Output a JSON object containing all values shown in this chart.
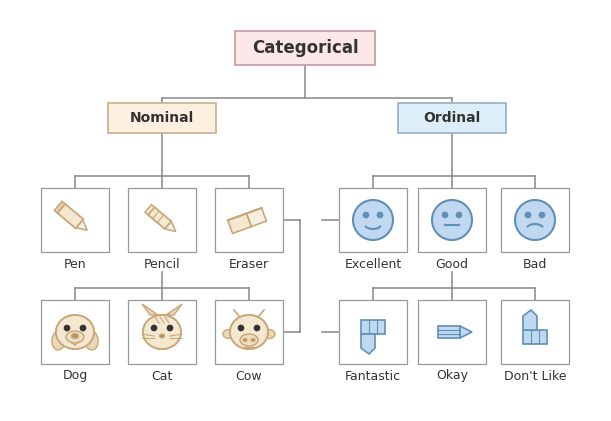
{
  "title": "Categorical",
  "title_box_color": "#fce8e8",
  "title_box_edge": "#c8a0a0",
  "nominal_box_color": "#fdf0e0",
  "nominal_box_edge": "#c8b090",
  "ordinal_box_color": "#deeef8",
  "ordinal_box_edge": "#90b0c8",
  "item_box_color": "#ffffff",
  "item_box_edge": "#999999",
  "background_color": "#ffffff",
  "text_color": "#333333",
  "line_color": "#888888",
  "nominal_items_row1": [
    "Pen",
    "Pencil",
    "Eraser"
  ],
  "nominal_items_row2": [
    "Dog",
    "Cat",
    "Cow"
  ],
  "ordinal_items_row1": [
    "Excellent",
    "Good",
    "Bad"
  ],
  "ordinal_items_row2": [
    "Fantastic",
    "Okay",
    "Don't Like"
  ],
  "icon_fill": "#f5e8d0",
  "icon_edge": "#c8a878",
  "icon_dark": "#b09060",
  "blue_fill": "#c0d8f0",
  "blue_edge": "#6090b8"
}
